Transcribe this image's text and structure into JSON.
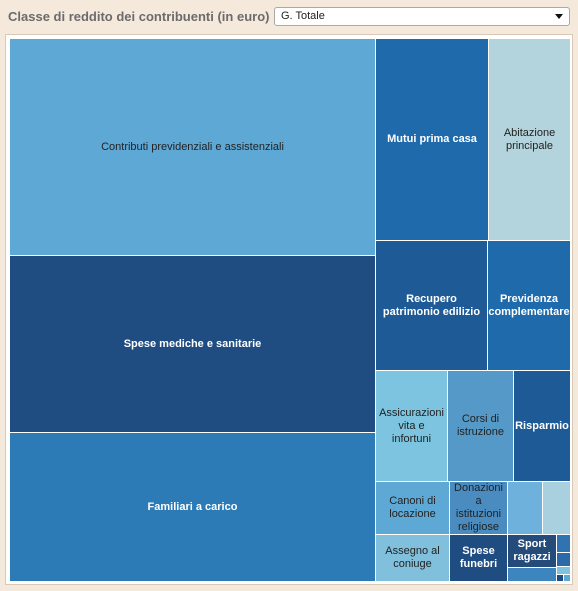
{
  "header": {
    "label": "Classe di reddito dei contribuenti (in euro)",
    "select_value": "G. Totale"
  },
  "treemap": {
    "tiles": [
      {
        "label": "Contributi previdenziali e assistenziali",
        "color": "#5ea8d6"
      },
      {
        "label": "Spese mediche e sanitarie",
        "color": "#1f4d82"
      },
      {
        "label": "Familiari a carico",
        "color": "#2c7bb6"
      },
      {
        "label": "Mutui prima casa",
        "color": "#1f6aab"
      },
      {
        "label": "Abitazione principale",
        "color": "#b3d4dc"
      },
      {
        "label": "Recupero patrimonio edilizio",
        "color": "#1e5a96"
      },
      {
        "label": "Previdenza complementare",
        "color": "#1f6aab"
      },
      {
        "label": "Assicurazioni vita e infortuni",
        "color": "#7cc4e0"
      },
      {
        "label": "Corsi di istruzione",
        "color": "#5599c8"
      },
      {
        "label": "Risparmio",
        "color": "#1e5a96"
      },
      {
        "label": "Canoni di locazione",
        "color": "#5ea8d6"
      },
      {
        "label": "Donazioni a istituzioni religiose",
        "color": "#4a8cc0"
      },
      {
        "label": "",
        "color": "#6db1dc"
      },
      {
        "label": "",
        "color": "#a8d0de"
      },
      {
        "label": "Assegno al coniuge",
        "color": "#80c0dc"
      },
      {
        "label": "Spese funebri",
        "color": "#1f4d82"
      },
      {
        "label": "Sport ragazzi",
        "color": "#244b7a"
      },
      {
        "label": "",
        "color": "#2f74b0"
      },
      {
        "label": "",
        "color": "#3d85bf"
      },
      {
        "label": "",
        "color": "#2a6aa8"
      },
      {
        "label": "",
        "color": "#7cc4e0"
      },
      {
        "label": "",
        "color": "#1f4d82"
      },
      {
        "label": "",
        "color": "#5ea8d6"
      }
    ]
  }
}
